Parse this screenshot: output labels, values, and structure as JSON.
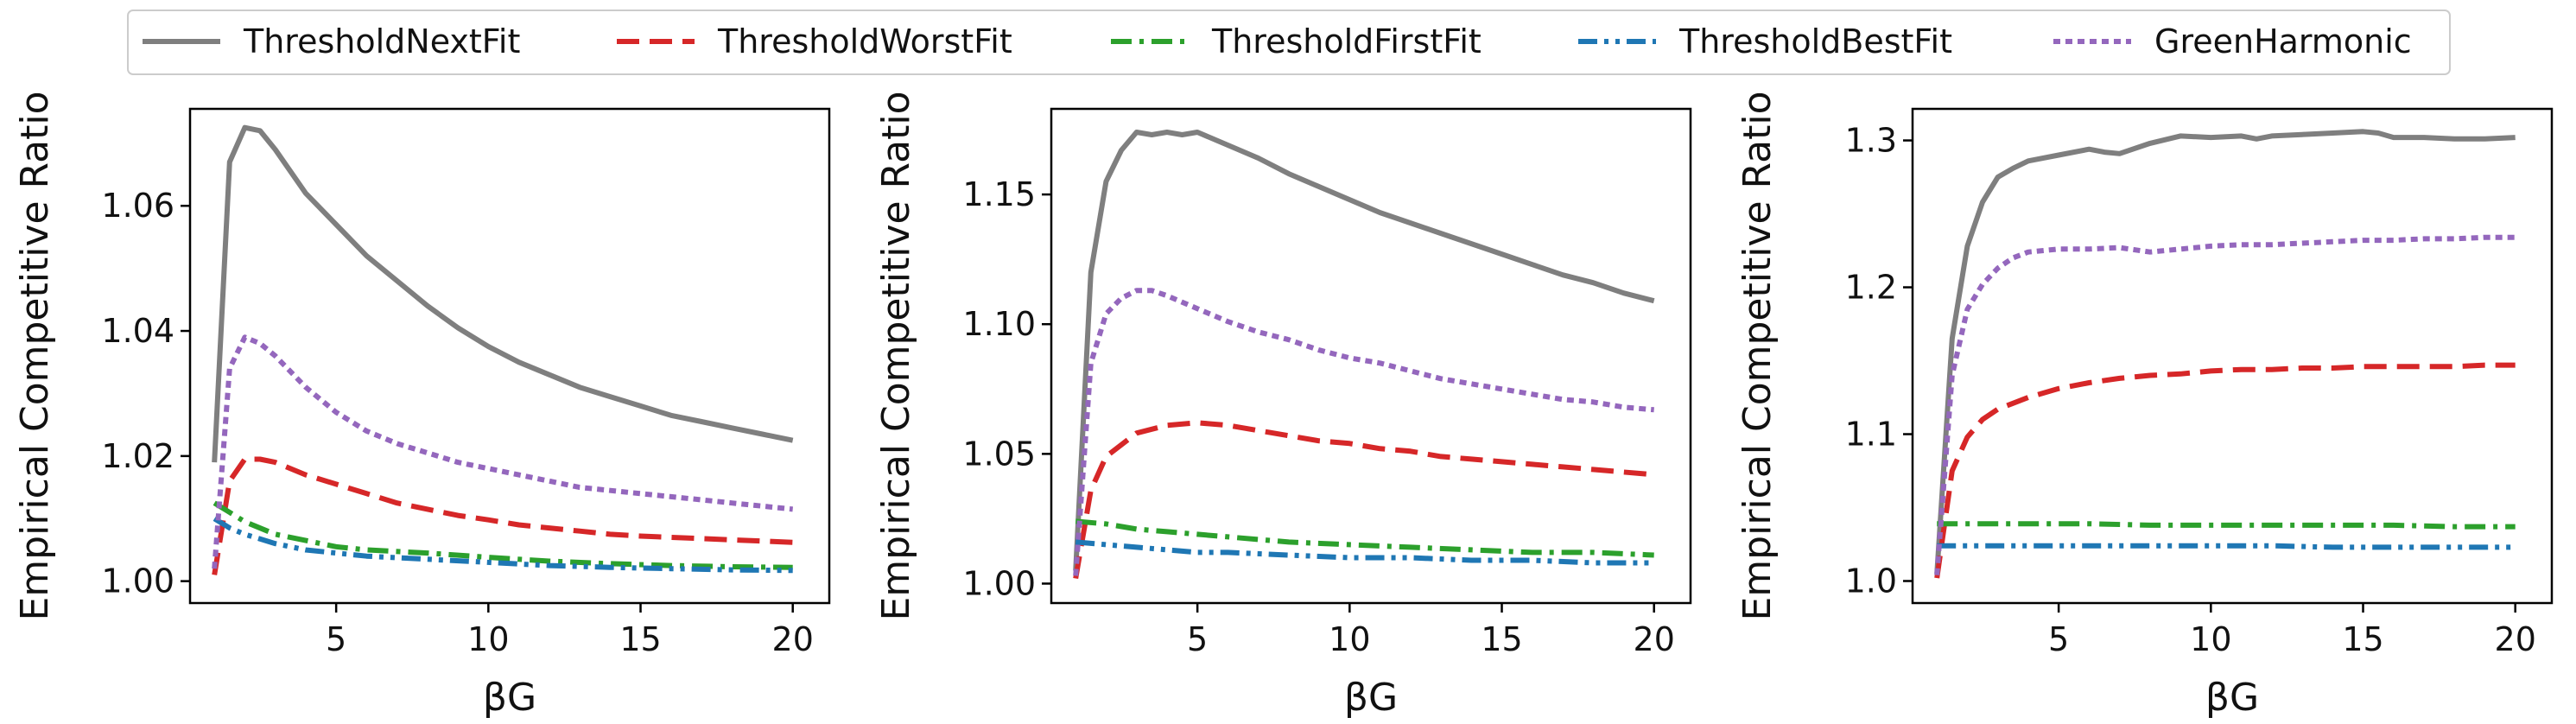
{
  "legend": {
    "placement": "top-center",
    "entries": [
      {
        "name": "ThresholdNextFit",
        "color": "#7f7f7f",
        "dash": "solid"
      },
      {
        "name": "ThresholdWorstFit",
        "color": "#d62728",
        "dash": "dashed"
      },
      {
        "name": "ThresholdFirstFit",
        "color": "#2ca02c",
        "dash": "dashdot"
      },
      {
        "name": "ThresholdBestFit",
        "color": "#1f77b4",
        "dash": "dashdotdot"
      },
      {
        "name": "GreenHarmonic",
        "color": "#9467bd",
        "dash": "dotted"
      }
    ]
  },
  "chart_data": [
    {
      "type": "line",
      "xlabel": "βG",
      "ylabel": "Empirical Competitive Ratio",
      "xlim": [
        0.2,
        21.2
      ],
      "ylim": [
        0.9965,
        1.0755
      ],
      "xticks": [
        5,
        10,
        15,
        20
      ],
      "yticks": [
        1.0,
        1.02,
        1.04,
        1.06
      ],
      "ytick_labels": [
        "1.00",
        "1.02",
        "1.04",
        "1.06"
      ],
      "grid": false,
      "series": [
        {
          "name": "ThresholdNextFit",
          "x": [
            1,
            1.5,
            2,
            2.5,
            3,
            4,
            5,
            6,
            7,
            8,
            9,
            10,
            11,
            12,
            13,
            14,
            15,
            16,
            17,
            18,
            19,
            20
          ],
          "values": [
            1.019,
            1.067,
            1.0725,
            1.072,
            1.069,
            1.062,
            1.057,
            1.052,
            1.048,
            1.044,
            1.0405,
            1.0375,
            1.035,
            1.033,
            1.031,
            1.0295,
            1.028,
            1.0265,
            1.0255,
            1.0245,
            1.0235,
            1.0225
          ]
        },
        {
          "name": "ThresholdWorstFit",
          "x": [
            1,
            1.5,
            2,
            2.5,
            3,
            4,
            5,
            6,
            7,
            8,
            9,
            10,
            11,
            12,
            13,
            14,
            15,
            16,
            17,
            18,
            19,
            20
          ],
          "values": [
            1.001,
            1.016,
            1.0195,
            1.0195,
            1.019,
            1.017,
            1.0155,
            1.014,
            1.0125,
            1.0115,
            1.0105,
            1.0098,
            1.009,
            1.0085,
            1.008,
            1.0075,
            1.0072,
            1.007,
            1.0068,
            1.0066,
            1.0064,
            1.0062
          ]
        },
        {
          "name": "ThresholdFirstFit",
          "x": [
            1,
            1.5,
            2,
            3,
            4,
            5,
            6,
            8,
            10,
            12,
            14,
            16,
            18,
            20
          ],
          "values": [
            1.0125,
            1.011,
            1.0095,
            1.0075,
            1.0065,
            1.0055,
            1.005,
            1.0045,
            1.0038,
            1.0032,
            1.0028,
            1.0025,
            1.0023,
            1.0022
          ]
        },
        {
          "name": "ThresholdBestFit",
          "x": [
            1,
            1.5,
            2,
            3,
            4,
            5,
            6,
            8,
            10,
            12,
            14,
            16,
            18,
            20
          ],
          "values": [
            1.01,
            1.0085,
            1.0075,
            1.006,
            1.005,
            1.0045,
            1.004,
            1.0035,
            1.003,
            1.0025,
            1.0022,
            1.002,
            1.0018,
            1.0017
          ]
        },
        {
          "name": "GreenHarmonic",
          "x": [
            1,
            1.5,
            2,
            2.5,
            3,
            4,
            5,
            6,
            7,
            8,
            9,
            10,
            11,
            12,
            13,
            14,
            15,
            16,
            17,
            18,
            19,
            20
          ],
          "values": [
            1.002,
            1.034,
            1.039,
            1.038,
            1.036,
            1.031,
            1.027,
            1.024,
            1.022,
            1.0205,
            1.019,
            1.018,
            1.017,
            1.016,
            1.015,
            1.0145,
            1.014,
            1.0135,
            1.013,
            1.0125,
            1.012,
            1.0115
          ]
        }
      ]
    },
    {
      "type": "line",
      "xlabel": "βG",
      "ylabel": "Empirical Competitive Ratio",
      "xlim": [
        0.2,
        21.2
      ],
      "ylim": [
        0.9925,
        1.183
      ],
      "xticks": [
        5,
        10,
        15,
        20
      ],
      "yticks": [
        1.0,
        1.05,
        1.1,
        1.15
      ],
      "ytick_labels": [
        "1.00",
        "1.05",
        "1.10",
        "1.15"
      ],
      "grid": false,
      "series": [
        {
          "name": "ThresholdNextFit",
          "x": [
            1,
            1.5,
            2,
            2.5,
            3,
            3.5,
            4,
            4.5,
            5,
            6,
            7,
            8,
            9,
            10,
            11,
            12,
            13,
            14,
            15,
            16,
            17,
            18,
            19,
            20
          ],
          "values": [
            1.005,
            1.12,
            1.155,
            1.167,
            1.174,
            1.173,
            1.174,
            1.173,
            1.174,
            1.169,
            1.164,
            1.158,
            1.153,
            1.148,
            1.143,
            1.139,
            1.135,
            1.131,
            1.127,
            1.123,
            1.119,
            1.116,
            1.112,
            1.109
          ]
        },
        {
          "name": "ThresholdWorstFit",
          "x": [
            1,
            1.5,
            2,
            3,
            4,
            5,
            6,
            7,
            8,
            9,
            10,
            11,
            12,
            13,
            14,
            15,
            16,
            17,
            18,
            19,
            20
          ],
          "values": [
            1.002,
            1.036,
            1.049,
            1.058,
            1.061,
            1.062,
            1.061,
            1.059,
            1.057,
            1.055,
            1.054,
            1.052,
            1.051,
            1.049,
            1.048,
            1.047,
            1.046,
            1.045,
            1.044,
            1.043,
            1.042
          ]
        },
        {
          "name": "ThresholdFirstFit",
          "x": [
            1,
            2,
            3,
            4,
            5,
            6,
            8,
            10,
            12,
            14,
            16,
            18,
            20
          ],
          "values": [
            1.024,
            1.023,
            1.021,
            1.02,
            1.019,
            1.018,
            1.016,
            1.015,
            1.014,
            1.013,
            1.012,
            1.012,
            1.011
          ]
        },
        {
          "name": "ThresholdBestFit",
          "x": [
            1,
            2,
            3,
            4,
            5,
            6,
            8,
            10,
            12,
            14,
            16,
            18,
            20
          ],
          "values": [
            1.016,
            1.015,
            1.014,
            1.013,
            1.012,
            1.012,
            1.011,
            1.01,
            1.01,
            1.009,
            1.009,
            1.008,
            1.008
          ]
        },
        {
          "name": "GreenHarmonic",
          "x": [
            1,
            1.5,
            2,
            2.5,
            3,
            3.5,
            4,
            5,
            6,
            7,
            8,
            9,
            10,
            11,
            12,
            13,
            14,
            15,
            16,
            17,
            18,
            19,
            20
          ],
          "values": [
            1.003,
            1.085,
            1.104,
            1.11,
            1.113,
            1.113,
            1.111,
            1.106,
            1.101,
            1.097,
            1.094,
            1.09,
            1.087,
            1.085,
            1.082,
            1.079,
            1.077,
            1.075,
            1.073,
            1.071,
            1.07,
            1.068,
            1.067
          ]
        }
      ]
    },
    {
      "type": "line",
      "xlabel": "βG",
      "ylabel": "Empirical Competitive Ratio",
      "xlim": [
        0.2,
        21.2
      ],
      "ylim": [
        0.985,
        1.3215
      ],
      "xticks": [
        5,
        10,
        15,
        20
      ],
      "yticks": [
        1.0,
        1.1,
        1.2,
        1.3
      ],
      "ytick_labels": [
        "1.0",
        "1.1",
        "1.2",
        "1.3"
      ],
      "grid": false,
      "series": [
        {
          "name": "ThresholdNextFit",
          "x": [
            1,
            1.5,
            2,
            2.5,
            3,
            3.5,
            4,
            5,
            6,
            6.5,
            7,
            8,
            9,
            10,
            11,
            11.5,
            12,
            13,
            14,
            15,
            15.5,
            16,
            17,
            18,
            19,
            20
          ],
          "values": [
            1.005,
            1.165,
            1.228,
            1.258,
            1.275,
            1.281,
            1.286,
            1.29,
            1.294,
            1.292,
            1.291,
            1.298,
            1.303,
            1.302,
            1.303,
            1.301,
            1.303,
            1.304,
            1.305,
            1.306,
            1.305,
            1.302,
            1.302,
            1.301,
            1.301,
            1.302
          ]
        },
        {
          "name": "ThresholdWorstFit",
          "x": [
            1,
            1.5,
            2,
            2.5,
            3,
            4,
            5,
            6,
            7,
            8,
            9,
            10,
            11,
            12,
            13,
            14,
            15,
            16,
            17,
            18,
            19,
            20
          ],
          "values": [
            1.002,
            1.075,
            1.098,
            1.11,
            1.117,
            1.125,
            1.131,
            1.135,
            1.138,
            1.14,
            1.141,
            1.143,
            1.144,
            1.144,
            1.145,
            1.145,
            1.146,
            1.146,
            1.146,
            1.146,
            1.147,
            1.147
          ]
        },
        {
          "name": "ThresholdFirstFit",
          "x": [
            1,
            2,
            4,
            6,
            8,
            10,
            12,
            14,
            16,
            18,
            20
          ],
          "values": [
            1.039,
            1.039,
            1.039,
            1.039,
            1.038,
            1.038,
            1.038,
            1.038,
            1.038,
            1.037,
            1.037
          ]
        },
        {
          "name": "ThresholdBestFit",
          "x": [
            1,
            2,
            4,
            6,
            8,
            10,
            12,
            14,
            16,
            18,
            20
          ],
          "values": [
            1.024,
            1.024,
            1.024,
            1.024,
            1.024,
            1.024,
            1.024,
            1.023,
            1.023,
            1.023,
            1.023
          ]
        },
        {
          "name": "GreenHarmonic",
          "x": [
            1,
            1.5,
            2,
            2.5,
            3,
            3.5,
            4,
            5,
            6,
            7,
            8,
            9,
            10,
            11,
            12,
            13,
            14,
            15,
            16,
            17,
            18,
            19,
            20
          ],
          "values": [
            1.004,
            1.14,
            1.185,
            1.202,
            1.213,
            1.22,
            1.224,
            1.226,
            1.226,
            1.227,
            1.224,
            1.226,
            1.228,
            1.229,
            1.229,
            1.23,
            1.231,
            1.232,
            1.232,
            1.233,
            1.233,
            1.234,
            1.234
          ]
        }
      ]
    }
  ]
}
